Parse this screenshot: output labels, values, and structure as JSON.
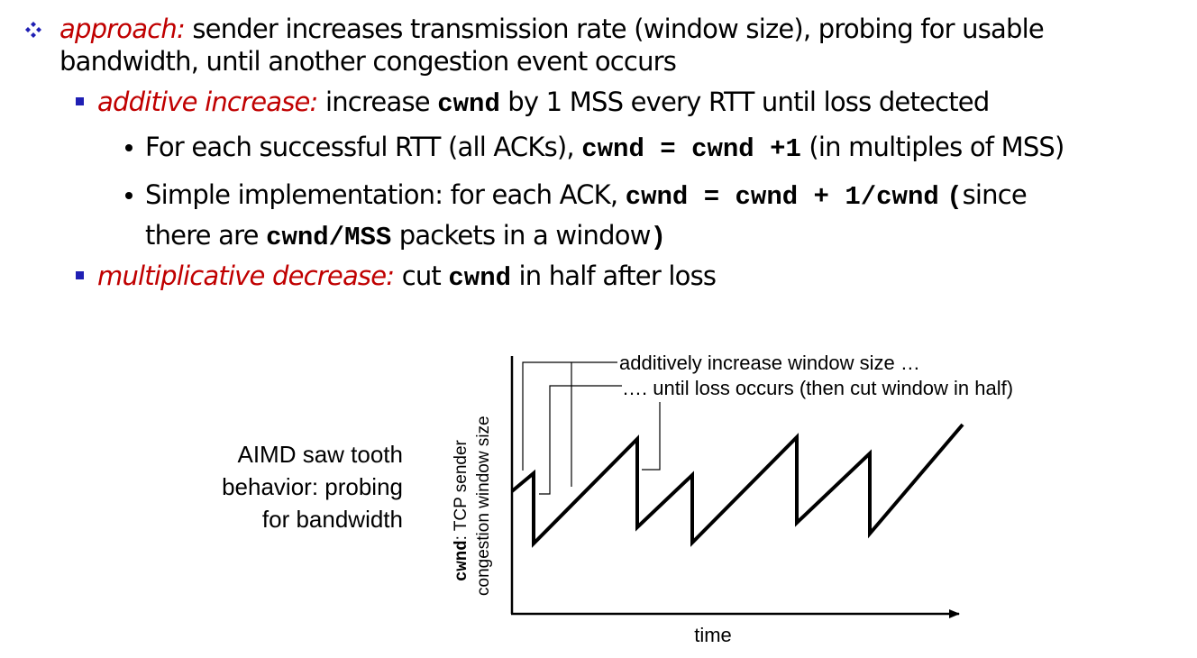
{
  "slide": {
    "approach": {
      "label": "approach:",
      "text_line1": "sender increases transmission rate (window size), probing for usable",
      "text_line2": "bandwidth, until another congestion event occurs"
    },
    "additive": {
      "label": "additive increase:",
      "text_before": "increase",
      "code": "cwnd",
      "text_after": "by 1 MSS every RTT until loss detected"
    },
    "sub1": {
      "text_before": "For each successful RTT (all ACKs),",
      "code": "cwnd = cwnd +1",
      "text_after": "(in multiples of MSS)"
    },
    "sub2": {
      "text_before": "Simple implementation: for each ACK,",
      "code": "cwnd = cwnd + 1/cwnd",
      "paren_open": "(",
      "text_after": "since",
      "line2_before": "there are",
      "line2_code": "cwnd/MSS",
      "line2_after": "packets in a window",
      "paren_close": ")"
    },
    "multiplicative": {
      "label": "multiplicative decrease:",
      "text_before": "cut",
      "code": "cwnd",
      "text_after": "in half after loss"
    }
  },
  "diagram": {
    "side_label": [
      "AIMD saw tooth",
      "behavior: probing",
      "for bandwidth"
    ],
    "y_axis_code": "cwnd",
    "y_axis_line1_rest": ": TCP sender",
    "y_axis_line2": "congestion window size",
    "x_axis_label": "time",
    "annotation1": "additively increase window size …",
    "annotation2": "…. until loss occurs (then cut window in half)"
  },
  "colors": {
    "emphasis": "#c00000",
    "square_bullet": "#1f1fb4",
    "diamond_bullet": "#1f1fb4"
  },
  "icons": {
    "top_bullet": "diamond-cluster-bullet-icon",
    "sub_bullet": "blue-square-bullet-icon",
    "subsub_bullet": "round-dot-bullet-icon"
  }
}
